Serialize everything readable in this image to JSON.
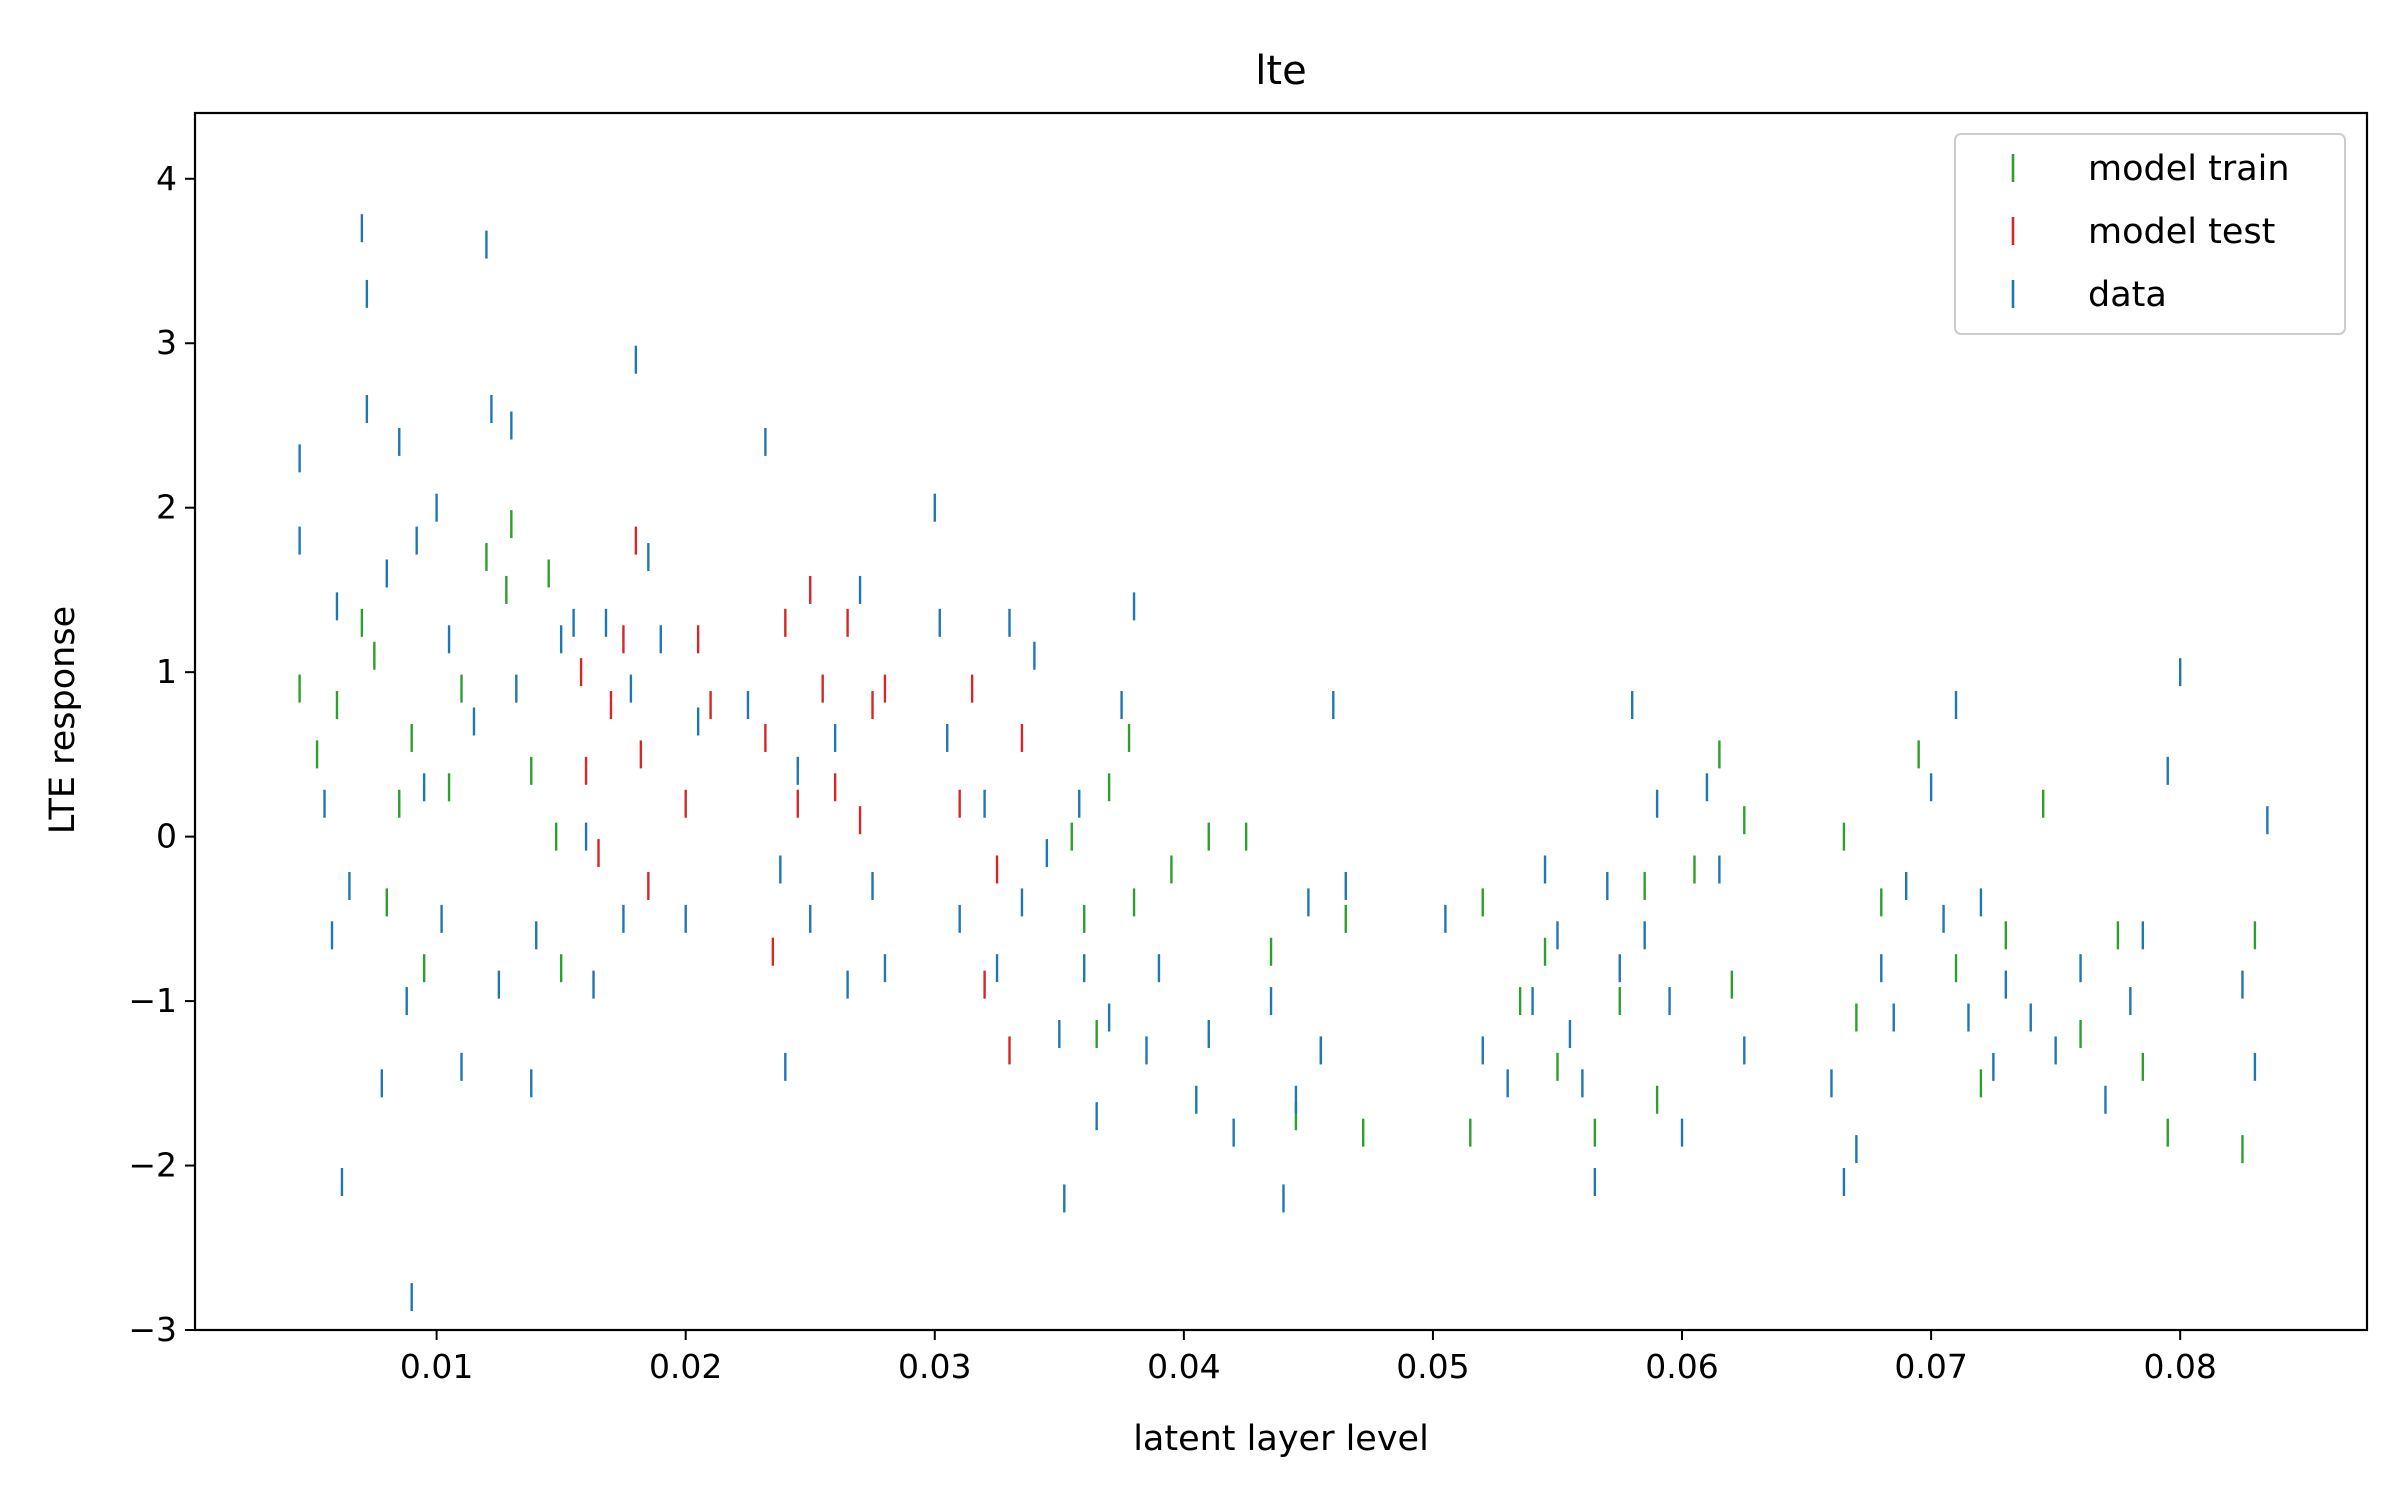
{
  "chart_data": {
    "type": "scatter",
    "title": "lte",
    "xlabel": "latent layer level",
    "ylabel": "LTE response",
    "xlim": [
      0.0003,
      0.0875
    ],
    "ylim": [
      -3.0,
      4.4
    ],
    "xticks": [
      0.01,
      0.02,
      0.03,
      0.04,
      0.05,
      0.06,
      0.07,
      0.08
    ],
    "yticks": [
      -3,
      -2,
      -1,
      0,
      1,
      2,
      3,
      4
    ],
    "xtick_labels": [
      "0.01",
      "0.02",
      "0.03",
      "0.04",
      "0.05",
      "0.06",
      "0.07",
      "0.08"
    ],
    "ytick_labels": [
      "−3",
      "−2",
      "−1",
      "0",
      "1",
      "2",
      "3",
      "4"
    ],
    "grid": false,
    "legend_position": "top-right",
    "marker": "vertical-line",
    "series": [
      {
        "name": "model train",
        "color": "#2ca02c",
        "points": [
          [
            0.0045,
            0.9
          ],
          [
            0.0052,
            0.5
          ],
          [
            0.006,
            0.8
          ],
          [
            0.007,
            1.3
          ],
          [
            0.0075,
            1.1
          ],
          [
            0.008,
            -0.4
          ],
          [
            0.0085,
            0.2
          ],
          [
            0.009,
            0.6
          ],
          [
            0.0095,
            -0.8
          ],
          [
            0.0105,
            0.3
          ],
          [
            0.011,
            0.9
          ],
          [
            0.012,
            1.7
          ],
          [
            0.0128,
            1.5
          ],
          [
            0.013,
            1.9
          ],
          [
            0.0138,
            0.4
          ],
          [
            0.0145,
            1.6
          ],
          [
            0.0148,
            0.0
          ],
          [
            0.015,
            -0.8
          ],
          [
            0.0355,
            0.0
          ],
          [
            0.036,
            -0.5
          ],
          [
            0.0365,
            -1.2
          ],
          [
            0.037,
            0.3
          ],
          [
            0.0378,
            0.6
          ],
          [
            0.038,
            -0.4
          ],
          [
            0.0395,
            -0.2
          ],
          [
            0.041,
            0.0
          ],
          [
            0.0425,
            0.0
          ],
          [
            0.0435,
            -0.7
          ],
          [
            0.0445,
            -1.7
          ],
          [
            0.0455,
            -1.3
          ],
          [
            0.0465,
            -0.5
          ],
          [
            0.0472,
            -1.8
          ],
          [
            0.0515,
            -1.8
          ],
          [
            0.052,
            -0.4
          ],
          [
            0.0535,
            -1.0
          ],
          [
            0.0545,
            -0.7
          ],
          [
            0.055,
            -1.4
          ],
          [
            0.0565,
            -1.8
          ],
          [
            0.0575,
            -1.0
          ],
          [
            0.0585,
            -0.3
          ],
          [
            0.059,
            -1.6
          ],
          [
            0.0605,
            -0.2
          ],
          [
            0.0615,
            0.5
          ],
          [
            0.062,
            -0.9
          ],
          [
            0.0625,
            0.1
          ],
          [
            0.0665,
            0.0
          ],
          [
            0.067,
            -1.1
          ],
          [
            0.068,
            -0.4
          ],
          [
            0.0695,
            0.5
          ],
          [
            0.071,
            -0.8
          ],
          [
            0.072,
            -1.5
          ],
          [
            0.073,
            -0.6
          ],
          [
            0.0745,
            0.2
          ],
          [
            0.076,
            -1.2
          ],
          [
            0.0775,
            -0.6
          ],
          [
            0.0785,
            -1.4
          ],
          [
            0.0795,
            -1.8
          ],
          [
            0.0825,
            -1.9
          ],
          [
            0.083,
            -0.6
          ]
        ]
      },
      {
        "name": "model test",
        "color": "#d62728",
        "points": [
          [
            0.0158,
            1.0
          ],
          [
            0.016,
            0.4
          ],
          [
            0.0165,
            -0.1
          ],
          [
            0.017,
            0.8
          ],
          [
            0.0175,
            1.2
          ],
          [
            0.018,
            1.8
          ],
          [
            0.0182,
            0.5
          ],
          [
            0.0185,
            -0.3
          ],
          [
            0.02,
            0.2
          ],
          [
            0.0205,
            1.2
          ],
          [
            0.021,
            0.8
          ],
          [
            0.0232,
            0.6
          ],
          [
            0.0235,
            -0.7
          ],
          [
            0.024,
            1.3
          ],
          [
            0.0245,
            0.2
          ],
          [
            0.025,
            1.5
          ],
          [
            0.0255,
            0.9
          ],
          [
            0.026,
            0.3
          ],
          [
            0.0265,
            1.3
          ],
          [
            0.027,
            0.1
          ],
          [
            0.0275,
            0.8
          ],
          [
            0.028,
            0.9
          ],
          [
            0.031,
            0.2
          ],
          [
            0.0315,
            0.9
          ],
          [
            0.032,
            -0.9
          ],
          [
            0.0325,
            -0.2
          ],
          [
            0.033,
            -1.3
          ],
          [
            0.0335,
            0.6
          ]
        ]
      },
      {
        "name": "data",
        "color": "#1f77b4",
        "points": [
          [
            0.0045,
            2.3
          ],
          [
            0.0045,
            1.8
          ],
          [
            0.0055,
            0.2
          ],
          [
            0.0058,
            -0.6
          ],
          [
            0.006,
            1.4
          ],
          [
            0.0062,
            -2.1
          ],
          [
            0.0065,
            -0.3
          ],
          [
            0.007,
            3.7
          ],
          [
            0.0072,
            3.3
          ],
          [
            0.0072,
            2.6
          ],
          [
            0.0078,
            -1.5
          ],
          [
            0.008,
            1.6
          ],
          [
            0.0085,
            2.4
          ],
          [
            0.0088,
            -1.0
          ],
          [
            0.009,
            -2.8
          ],
          [
            0.0092,
            1.8
          ],
          [
            0.0095,
            0.3
          ],
          [
            0.01,
            2.0
          ],
          [
            0.0102,
            -0.5
          ],
          [
            0.0105,
            1.2
          ],
          [
            0.011,
            -1.4
          ],
          [
            0.0115,
            0.7
          ],
          [
            0.012,
            3.6
          ],
          [
            0.0122,
            2.6
          ],
          [
            0.0125,
            -0.9
          ],
          [
            0.013,
            2.5
          ],
          [
            0.0132,
            0.9
          ],
          [
            0.0138,
            -1.5
          ],
          [
            0.014,
            -0.6
          ],
          [
            0.015,
            1.2
          ],
          [
            0.0155,
            1.3
          ],
          [
            0.016,
            0.0
          ],
          [
            0.0163,
            -0.9
          ],
          [
            0.0168,
            1.3
          ],
          [
            0.0175,
            -0.5
          ],
          [
            0.0178,
            0.9
          ],
          [
            0.018,
            2.9
          ],
          [
            0.0185,
            1.7
          ],
          [
            0.019,
            1.2
          ],
          [
            0.02,
            -0.5
          ],
          [
            0.0205,
            0.7
          ],
          [
            0.0225,
            0.8
          ],
          [
            0.0232,
            2.4
          ],
          [
            0.0238,
            -0.2
          ],
          [
            0.024,
            -1.4
          ],
          [
            0.0245,
            0.4
          ],
          [
            0.025,
            -0.5
          ],
          [
            0.026,
            0.6
          ],
          [
            0.0265,
            -0.9
          ],
          [
            0.027,
            1.5
          ],
          [
            0.0275,
            -0.3
          ],
          [
            0.028,
            -0.8
          ],
          [
            0.03,
            2.0
          ],
          [
            0.0302,
            1.3
          ],
          [
            0.0305,
            0.6
          ],
          [
            0.031,
            -0.5
          ],
          [
            0.032,
            0.2
          ],
          [
            0.0325,
            -0.8
          ],
          [
            0.033,
            1.3
          ],
          [
            0.0335,
            -0.4
          ],
          [
            0.034,
            1.1
          ],
          [
            0.0345,
            -0.1
          ],
          [
            0.035,
            -1.2
          ],
          [
            0.0352,
            -2.2
          ],
          [
            0.0358,
            0.2
          ],
          [
            0.036,
            -0.8
          ],
          [
            0.0365,
            -1.7
          ],
          [
            0.037,
            -1.1
          ],
          [
            0.0375,
            0.8
          ],
          [
            0.038,
            1.4
          ],
          [
            0.0385,
            -1.3
          ],
          [
            0.039,
            -0.8
          ],
          [
            0.0405,
            -1.6
          ],
          [
            0.041,
            -1.2
          ],
          [
            0.042,
            -1.8
          ],
          [
            0.0435,
            -1.0
          ],
          [
            0.044,
            -2.2
          ],
          [
            0.0445,
            -1.6
          ],
          [
            0.045,
            -0.4
          ],
          [
            0.0455,
            -1.3
          ],
          [
            0.046,
            0.8
          ],
          [
            0.0465,
            -0.3
          ],
          [
            0.0505,
            -0.5
          ],
          [
            0.052,
            -1.3
          ],
          [
            0.053,
            -1.5
          ],
          [
            0.054,
            -1.0
          ],
          [
            0.0545,
            -0.2
          ],
          [
            0.055,
            -0.6
          ],
          [
            0.0555,
            -1.2
          ],
          [
            0.056,
            -1.5
          ],
          [
            0.0565,
            -2.1
          ],
          [
            0.057,
            -0.3
          ],
          [
            0.0575,
            -0.8
          ],
          [
            0.058,
            0.8
          ],
          [
            0.0585,
            -0.6
          ],
          [
            0.059,
            0.2
          ],
          [
            0.0595,
            -1.0
          ],
          [
            0.06,
            -1.8
          ],
          [
            0.061,
            0.3
          ],
          [
            0.0615,
            -0.2
          ],
          [
            0.0625,
            -1.3
          ],
          [
            0.066,
            -1.5
          ],
          [
            0.0665,
            -2.1
          ],
          [
            0.067,
            -1.9
          ],
          [
            0.068,
            -0.8
          ],
          [
            0.0685,
            -1.1
          ],
          [
            0.069,
            -0.3
          ],
          [
            0.07,
            0.3
          ],
          [
            0.0705,
            -0.5
          ],
          [
            0.071,
            0.8
          ],
          [
            0.0715,
            -1.1
          ],
          [
            0.072,
            -0.4
          ],
          [
            0.0725,
            -1.4
          ],
          [
            0.073,
            -0.9
          ],
          [
            0.074,
            -1.1
          ],
          [
            0.075,
            -1.3
          ],
          [
            0.076,
            -0.8
          ],
          [
            0.077,
            -1.6
          ],
          [
            0.078,
            -1.0
          ],
          [
            0.0785,
            -0.6
          ],
          [
            0.0795,
            0.4
          ],
          [
            0.08,
            1.0
          ],
          [
            0.0825,
            -0.9
          ],
          [
            0.083,
            -1.4
          ],
          [
            0.0835,
            0.1
          ]
        ]
      }
    ]
  }
}
